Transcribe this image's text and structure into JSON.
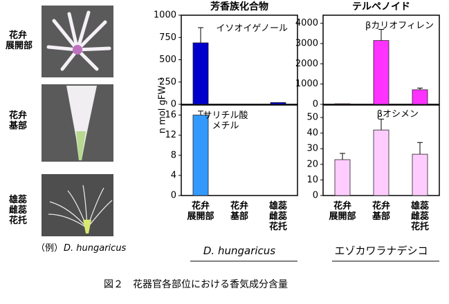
{
  "photos": [
    {
      "label": "花弁\n展開部"
    },
    {
      "label": "花弁\n基部"
    },
    {
      "label": "雄蕊\n雌蕊\n花托"
    }
  ],
  "photo_caption": {
    "prefix": "（例）",
    "species": "D. hungaricus"
  },
  "ylabel": "n mol gFW⁻¹",
  "figure_caption": "図２　花器官各部位における香気成分含量",
  "chart_data": [
    {
      "type": "bar",
      "title": "芳香族化合物",
      "annotation": "イソオイゲノール",
      "categories": [
        null,
        null,
        null
      ],
      "values": [
        690,
        0,
        20
      ],
      "errors": [
        170,
        null,
        null
      ],
      "color": "#0000cc",
      "ylim": [
        0,
        1000
      ],
      "yticks": [
        0,
        250,
        500,
        750,
        1000
      ]
    },
    {
      "type": "bar",
      "annotation": "サリチル酸\nメチル",
      "xlabel": "D. hungaricus",
      "categories": [
        "花弁\n展開部",
        "花弁\n基部",
        "雄蕊\n雌蕊\n花托"
      ],
      "values": [
        16,
        0,
        0
      ],
      "errors": [
        0.8,
        null,
        null
      ],
      "color": "#3399ff",
      "ylim": [
        0,
        18
      ],
      "yticks": [
        0,
        4,
        8,
        12,
        16
      ]
    },
    {
      "type": "bar",
      "title": "テルペノイド",
      "annotation": "βカリオフィレン",
      "categories": [
        null,
        null,
        null
      ],
      "values": [
        30,
        3150,
        720
      ],
      "errors": [
        null,
        550,
        80
      ],
      "color": "#ff33ff",
      "ylim": [
        0,
        4400
      ],
      "yticks": [
        0,
        1000,
        2000,
        3000,
        4000
      ]
    },
    {
      "type": "bar",
      "annotation": "βオシメン",
      "xlabel": "エゾカワラナデシコ",
      "categories": [
        "花弁\n展開部",
        "花弁\n基部",
        "雄蕊\n雌蕊\n花托"
      ],
      "values": [
        23,
        42,
        26.5
      ],
      "errors": [
        4,
        7,
        7.5
      ],
      "color": "#ffccff",
      "ylim": [
        0,
        58
      ],
      "yticks": [
        0,
        10,
        20,
        30,
        40,
        50
      ]
    }
  ]
}
